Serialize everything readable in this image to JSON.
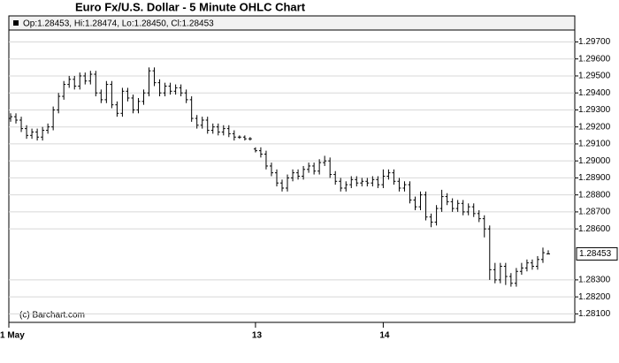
{
  "chart_data": {
    "type": "ohlc",
    "title": "Euro Fx/U.S. Dollar - 5 Minute OHLC Chart",
    "header": "Op:1.28453, Hi:1.28474, Lo:1.28450, Cl:1.28453",
    "watermark": "(c) Barchart.com",
    "color": "#000000",
    "grid": true,
    "categories": [
      "1 May",
      null,
      null,
      null,
      null,
      null,
      null,
      null,
      null,
      null,
      null,
      null,
      null,
      null,
      null,
      null,
      null,
      null,
      null,
      null,
      null,
      null,
      null,
      null,
      null,
      null,
      null,
      null,
      null,
      null,
      null,
      null,
      null,
      null,
      null,
      null,
      null,
      null,
      null,
      null,
      null,
      null,
      null,
      null,
      null,
      null,
      "13",
      null,
      null,
      null,
      null,
      null,
      null,
      null,
      null,
      null,
      null,
      null,
      null,
      null,
      null,
      null,
      null,
      null,
      null,
      null,
      null,
      null,
      null,
      null,
      "14",
      null,
      null,
      null,
      null,
      null,
      null,
      null,
      null,
      null,
      null,
      null,
      null,
      null,
      null,
      null,
      null,
      null,
      null,
      null,
      null,
      null,
      null,
      null,
      null,
      null,
      null,
      null,
      null,
      null,
      null,
      null
    ],
    "open": [
      1.2925,
      1.2926,
      1.2924,
      1.2919,
      1.2915,
      1.2917,
      1.2914,
      1.2918,
      1.292,
      1.293,
      1.2938,
      1.2945,
      1.2948,
      1.2944,
      1.295,
      1.2947,
      1.2951,
      1.294,
      1.2936,
      1.2945,
      1.2933,
      1.2928,
      1.2941,
      1.2937,
      1.293,
      1.2935,
      1.294,
      1.2953,
      1.2946,
      1.294,
      1.2944,
      1.2941,
      1.2943,
      1.294,
      1.2936,
      1.2925,
      1.2921,
      1.2924,
      1.2918,
      1.292,
      1.2917,
      1.2919,
      1.2916,
      1.2914,
      1.2914,
      1.2913,
      1.2907,
      1.2906,
      1.2904,
      1.2897,
      1.2893,
      1.2887,
      1.2884,
      1.289,
      1.2893,
      1.2891,
      1.2895,
      1.2897,
      1.2894,
      1.2899,
      1.29,
      1.2892,
      1.2888,
      1.2884,
      1.2886,
      1.2889,
      1.2887,
      1.2888,
      1.2887,
      1.2889,
      1.2886,
      1.2891,
      1.2893,
      1.2888,
      1.2884,
      1.2886,
      1.2877,
      1.2873,
      1.288,
      1.2867,
      1.2864,
      1.2872,
      1.2879,
      1.2876,
      1.2872,
      1.2875,
      1.287,
      1.2873,
      1.2869,
      1.2866,
      1.286,
      1.2836,
      1.283,
      1.2838,
      1.2832,
      1.2828,
      1.2835,
      1.2837,
      1.284,
      1.2838,
      1.2842,
      1.28453
    ],
    "high": [
      1.2928,
      1.2928,
      1.2926,
      1.2921,
      1.2919,
      1.2919,
      1.292,
      1.2922,
      1.2932,
      1.294,
      1.2947,
      1.295,
      1.295,
      1.2952,
      1.2952,
      1.2953,
      1.2953,
      1.2942,
      1.2947,
      1.2947,
      1.2935,
      1.2943,
      1.2943,
      1.2939,
      1.2937,
      1.2942,
      1.2955,
      1.2955,
      1.2948,
      1.2946,
      1.2946,
      1.2945,
      1.2945,
      1.2942,
      1.2938,
      1.2927,
      1.2926,
      1.2926,
      1.2922,
      1.2922,
      1.2921,
      1.2921,
      1.2918,
      1.2915,
      1.2915,
      1.2914,
      1.2908,
      1.2908,
      1.2906,
      1.2899,
      1.2895,
      1.2889,
      1.2892,
      1.2895,
      1.2895,
      1.2897,
      1.2899,
      1.2899,
      1.2901,
      1.2903,
      1.2902,
      1.2894,
      1.289,
      1.2888,
      1.2891,
      1.2891,
      1.289,
      1.289,
      1.2891,
      1.2891,
      1.2895,
      1.2895,
      1.2895,
      1.289,
      1.2888,
      1.2888,
      1.2879,
      1.2882,
      1.2882,
      1.2869,
      1.2874,
      1.2883,
      1.2881,
      1.2878,
      1.2877,
      1.2877,
      1.2875,
      1.2875,
      1.2871,
      1.2868,
      1.2862,
      1.284,
      1.284,
      1.284,
      1.2834,
      1.2837,
      1.284,
      1.2842,
      1.2842,
      1.2844,
      1.2849,
      1.28474
    ],
    "low": [
      1.2923,
      1.2922,
      1.2917,
      1.2913,
      1.2913,
      1.2912,
      1.2912,
      1.2916,
      1.2918,
      1.2928,
      1.2936,
      1.2943,
      1.2942,
      1.2942,
      1.2945,
      1.2945,
      1.2938,
      1.2934,
      1.2934,
      1.2931,
      1.2926,
      1.2926,
      1.2935,
      1.2928,
      1.2928,
      1.2933,
      1.2938,
      1.2944,
      1.2938,
      1.2938,
      1.2939,
      1.2939,
      1.2938,
      1.2934,
      1.2923,
      1.2919,
      1.2919,
      1.2916,
      1.2916,
      1.2915,
      1.2915,
      1.2914,
      1.2912,
      1.2913,
      1.2912,
      1.2912,
      1.2905,
      1.2902,
      1.2895,
      1.2891,
      1.2885,
      1.2882,
      1.2882,
      1.2888,
      1.2889,
      1.2889,
      1.2893,
      1.2892,
      1.2892,
      1.2897,
      1.289,
      1.2886,
      1.2882,
      1.2882,
      1.2884,
      1.2885,
      1.2885,
      1.2885,
      1.2885,
      1.2884,
      1.2884,
      1.2889,
      1.2886,
      1.2882,
      1.2882,
      1.2875,
      1.2871,
      1.2871,
      1.2865,
      1.2861,
      1.2862,
      1.287,
      1.2874,
      1.287,
      1.287,
      1.2868,
      1.2868,
      1.2867,
      1.2864,
      1.2855,
      1.283,
      1.2828,
      1.2828,
      1.2827,
      1.2826,
      1.2826,
      1.2833,
      1.2835,
      1.2836,
      1.2836,
      1.284,
      1.2845
    ],
    "close": [
      1.2926,
      1.2924,
      1.2919,
      1.2915,
      1.2917,
      1.2914,
      1.2918,
      1.292,
      1.293,
      1.2938,
      1.2945,
      1.2948,
      1.2944,
      1.295,
      1.2947,
      1.2951,
      1.294,
      1.2936,
      1.2945,
      1.2933,
      1.2928,
      1.2941,
      1.2937,
      1.293,
      1.2935,
      1.294,
      1.2953,
      1.2946,
      1.294,
      1.2944,
      1.2941,
      1.2943,
      1.294,
      1.2936,
      1.2925,
      1.2921,
      1.2924,
      1.2918,
      1.292,
      1.2917,
      1.2919,
      1.2916,
      1.2914,
      1.2914,
      1.2913,
      1.2913,
      1.2906,
      1.2904,
      1.2897,
      1.2893,
      1.2887,
      1.2884,
      1.289,
      1.2893,
      1.2891,
      1.2895,
      1.2897,
      1.2894,
      1.2899,
      1.29,
      1.2892,
      1.2888,
      1.2884,
      1.2886,
      1.2889,
      1.2887,
      1.2888,
      1.2887,
      1.2889,
      1.2886,
      1.2891,
      1.2893,
      1.2888,
      1.2884,
      1.2886,
      1.2877,
      1.2873,
      1.288,
      1.2867,
      1.2864,
      1.2872,
      1.2879,
      1.2876,
      1.2872,
      1.2875,
      1.287,
      1.2873,
      1.2869,
      1.2866,
      1.286,
      1.2836,
      1.283,
      1.2838,
      1.2832,
      1.2828,
      1.2835,
      1.2837,
      1.284,
      1.2838,
      1.2842,
      1.2846,
      1.28453
    ],
    "ylim": [
      1.2805,
      1.2977
    ],
    "yticks": [
      {
        "value": 1.297,
        "label": "1.29700"
      },
      {
        "value": 1.296,
        "label": "1.29600"
      },
      {
        "value": 1.295,
        "label": "1.29500"
      },
      {
        "value": 1.294,
        "label": "1.29400"
      },
      {
        "value": 1.293,
        "label": "1.29300"
      },
      {
        "value": 1.292,
        "label": "1.29200"
      },
      {
        "value": 1.291,
        "label": "1.29100"
      },
      {
        "value": 1.29,
        "label": "1.29000"
      },
      {
        "value": 1.289,
        "label": "1.28900"
      },
      {
        "value": 1.288,
        "label": "1.28800"
      },
      {
        "value": 1.287,
        "label": "1.28700"
      },
      {
        "value": 1.286,
        "label": "1.28600"
      },
      {
        "value": 1.283,
        "label": "1.28300"
      },
      {
        "value": 1.282,
        "label": "1.28200"
      },
      {
        "value": 1.281,
        "label": "1.28100"
      }
    ]
  }
}
